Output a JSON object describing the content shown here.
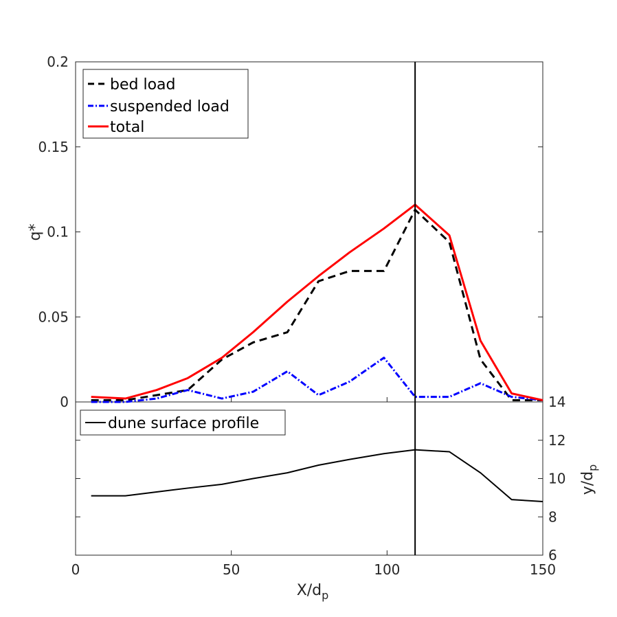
{
  "chart_data": [
    {
      "type": "line",
      "panel": "upper",
      "ylabel": "q*",
      "ylim": [
        0,
        0.2
      ],
      "yticks": [
        0,
        0.05,
        0.1,
        0.15,
        0.2
      ],
      "ytick_labels": [
        "0",
        "0.05",
        "0.1",
        "0.15",
        "0.2"
      ],
      "xlim": [
        0,
        150
      ],
      "legend_position": "top-left",
      "series": [
        {
          "name": "bed load",
          "color": "#000000",
          "style": "dashed",
          "x": [
            5,
            16,
            26,
            36,
            47,
            57,
            68,
            78,
            88,
            99,
            109,
            120,
            130,
            140,
            150
          ],
          "y": [
            0.001,
            0.001,
            0.004,
            0.007,
            0.025,
            0.035,
            0.041,
            0.071,
            0.077,
            0.077,
            0.113,
            0.094,
            0.025,
            0.001,
            0.001
          ]
        },
        {
          "name": "suspended load",
          "color": "#0000ff",
          "style": "dashdot",
          "x": [
            5,
            16,
            26,
            36,
            47,
            57,
            68,
            78,
            88,
            99,
            109,
            120,
            130,
            140,
            150
          ],
          "y": [
            0.0,
            0.0,
            0.002,
            0.007,
            0.002,
            0.006,
            0.018,
            0.004,
            0.012,
            0.026,
            0.003,
            0.003,
            0.011,
            0.003,
            0.001
          ]
        },
        {
          "name": "total",
          "color": "#ff0000",
          "style": "solid",
          "x": [
            5,
            16,
            26,
            36,
            47,
            57,
            68,
            78,
            88,
            99,
            109,
            120,
            130,
            140,
            150
          ],
          "y": [
            0.003,
            0.002,
            0.007,
            0.014,
            0.026,
            0.041,
            0.059,
            0.074,
            0.088,
            0.102,
            0.116,
            0.098,
            0.036,
            0.005,
            0.001
          ]
        }
      ],
      "vertical_line": {
        "x": 109,
        "color": "#000000"
      }
    },
    {
      "type": "line",
      "panel": "lower",
      "ylabel": "y/d",
      "ylabel_subscript": "p",
      "ylim": [
        6,
        14
      ],
      "yticks": [
        6,
        8,
        10,
        12,
        14
      ],
      "ytick_labels": [
        "6",
        "8",
        "10",
        "12",
        "14"
      ],
      "xlabel": "X/d",
      "xlabel_subscript": "p",
      "xlim": [
        0,
        150
      ],
      "xticks": [
        0,
        50,
        100,
        150
      ],
      "xtick_labels": [
        "0",
        "50",
        "100",
        "150"
      ],
      "legend_position": "top-left",
      "series": [
        {
          "name": "dune surface profile",
          "color": "#000000",
          "style": "solid",
          "x": [
            5,
            16,
            26,
            36,
            47,
            57,
            68,
            78,
            88,
            99,
            109,
            120,
            130,
            140,
            150
          ],
          "y": [
            9.1,
            9.1,
            9.3,
            9.5,
            9.7,
            10.0,
            10.3,
            10.7,
            11.0,
            11.3,
            11.5,
            11.4,
            10.3,
            8.9,
            8.8
          ]
        }
      ],
      "vertical_line": {
        "x": 109,
        "color": "#000000"
      }
    }
  ]
}
